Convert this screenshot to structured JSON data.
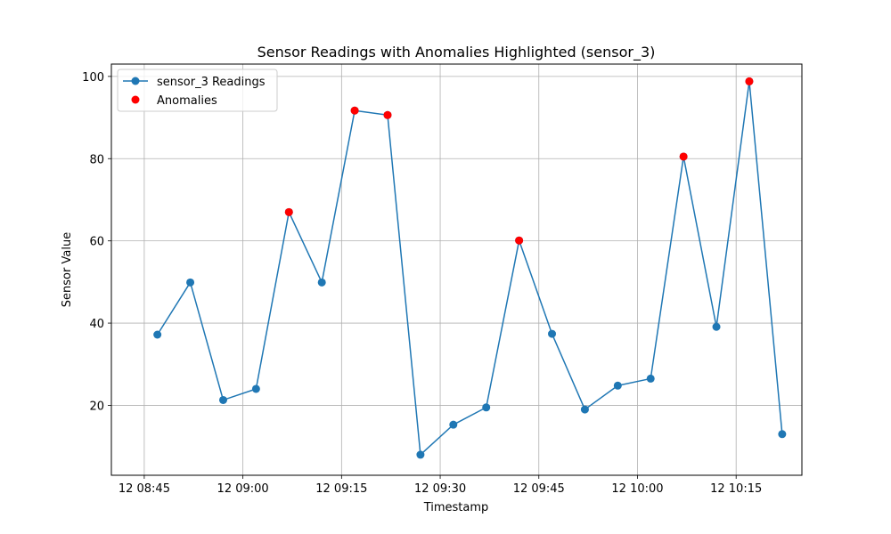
{
  "chart_data": {
    "type": "line",
    "title": "Sensor Readings with Anomalies Highlighted (sensor_3)",
    "xlabel": "Timestamp",
    "ylabel": "Sensor Value",
    "grid": true,
    "legend_placement": "top-left",
    "x_unit": "time of day (HH:MM)",
    "xlim": [
      "08:40",
      "10:25"
    ],
    "ylim": [
      3,
      103
    ],
    "x_ticks": [
      {
        "value": "08:45",
        "label": "12 08:45"
      },
      {
        "value": "09:00",
        "label": "12 09:00"
      },
      {
        "value": "09:15",
        "label": "12 09:15"
      },
      {
        "value": "09:30",
        "label": "12 09:30"
      },
      {
        "value": "09:45",
        "label": "12 09:45"
      },
      {
        "value": "10:00",
        "label": "12 10:00"
      },
      {
        "value": "10:15",
        "label": "12 10:15"
      }
    ],
    "y_ticks": [
      20,
      40,
      60,
      80,
      100
    ],
    "series": [
      {
        "name": "sensor_3 Readings",
        "kind": "line-with-markers",
        "color": "#1f77b4",
        "x": [
          "08:47",
          "08:52",
          "08:57",
          "09:02",
          "09:07",
          "09:12",
          "09:17",
          "09:22",
          "09:27",
          "09:32",
          "09:37",
          "09:42",
          "09:47",
          "09:52",
          "09:57",
          "10:02",
          "10:07",
          "10:12",
          "10:17",
          "10:22"
        ],
        "y": [
          37.2,
          49.9,
          21.3,
          24.0,
          67.0,
          49.9,
          91.7,
          90.6,
          8.0,
          15.3,
          19.5,
          60.1,
          37.4,
          19.0,
          24.8,
          26.5,
          80.5,
          39.1,
          98.8,
          13.0
        ]
      },
      {
        "name": "Anomalies",
        "kind": "scatter",
        "color": "#ff0000",
        "x": [
          "09:07",
          "09:17",
          "09:22",
          "09:42",
          "10:07",
          "10:17"
        ],
        "y": [
          67.0,
          91.7,
          90.6,
          60.1,
          80.5,
          98.8
        ]
      }
    ]
  }
}
